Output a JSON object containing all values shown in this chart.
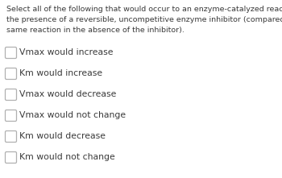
{
  "question_lines": [
    "Select all of the following that would occur to an enzyme-catalyzed reaction in",
    "the presence of a reversible, uncompetitive enzyme inhibitor (compared to the",
    "same reaction in the absence of the inhibitor)."
  ],
  "options": [
    "Vmax would increase",
    "Km would increase",
    "Vmax would decrease",
    "Vmax would not change",
    "Km would decrease",
    "Km would not change"
  ],
  "background_color": "#ffffff",
  "text_color": "#3a3a3a",
  "checkbox_color": "#ffffff",
  "checkbox_edge_color": "#b0b0b0",
  "question_fontsize": 6.8,
  "option_fontsize": 7.8,
  "fig_width": 3.5,
  "fig_height": 2.21,
  "dpi": 100
}
